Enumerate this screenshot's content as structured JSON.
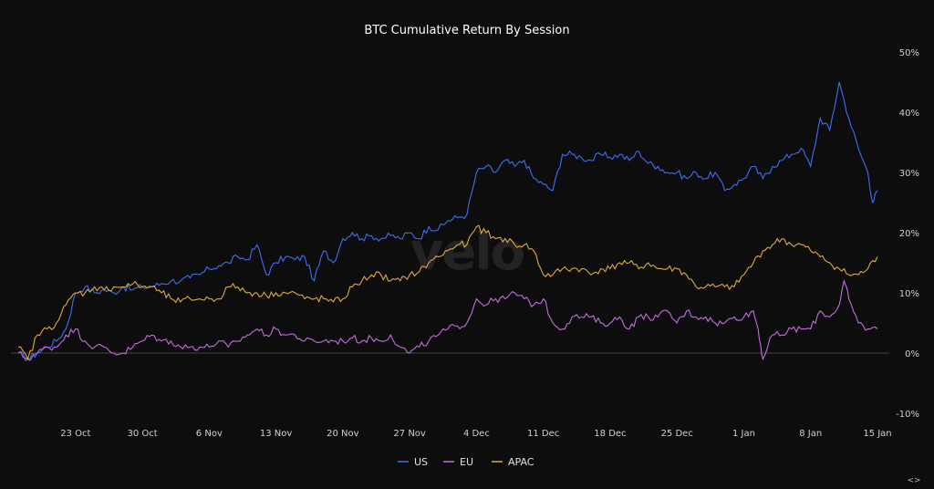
{
  "chart_data": {
    "type": "line",
    "title": "BTC Cumulative Return By Session",
    "xlabel": "",
    "ylabel": "",
    "ylim": [
      -10,
      50
    ],
    "yticks": [
      "50%",
      "40%",
      "30%",
      "20%",
      "10%",
      "0%",
      "-10%"
    ],
    "ytick_values": [
      50,
      40,
      30,
      20,
      10,
      0,
      -10
    ],
    "x_range_days": [
      0,
      90
    ],
    "xticks": [
      {
        "label": "23 Oct",
        "day": 6
      },
      {
        "label": "30 Oct",
        "day": 13
      },
      {
        "label": "6 Nov",
        "day": 20
      },
      {
        "label": "13 Nov",
        "day": 27
      },
      {
        "label": "20 Nov",
        "day": 34
      },
      {
        "label": "27 Nov",
        "day": 41
      },
      {
        "label": "4 Dec",
        "day": 48
      },
      {
        "label": "11 Dec",
        "day": 55
      },
      {
        "label": "18 Dec",
        "day": 62
      },
      {
        "label": "25 Dec",
        "day": 69
      },
      {
        "label": "1 Jan",
        "day": 76
      },
      {
        "label": "8 Jan",
        "day": 83
      },
      {
        "label": "15 Jan",
        "day": 90
      }
    ],
    "legend_position": "bottom-center",
    "grid": false,
    "series": [
      {
        "name": "US",
        "color": "#3b6ff5",
        "points": [
          [
            0,
            0
          ],
          [
            1,
            -1
          ],
          [
            2,
            0
          ],
          [
            3,
            1
          ],
          [
            4,
            2
          ],
          [
            5,
            4
          ],
          [
            6,
            10
          ],
          [
            7,
            11
          ],
          [
            8,
            10
          ],
          [
            9,
            10.5
          ],
          [
            10,
            10
          ],
          [
            11,
            11
          ],
          [
            12,
            10.5
          ],
          [
            13,
            11
          ],
          [
            14,
            11
          ],
          [
            15,
            11.5
          ],
          [
            16,
            12
          ],
          [
            17,
            12
          ],
          [
            18,
            12.5
          ],
          [
            19,
            13
          ],
          [
            20,
            14
          ],
          [
            21,
            14.5
          ],
          [
            22,
            15
          ],
          [
            23,
            16
          ],
          [
            24,
            15.5
          ],
          [
            25,
            18
          ],
          [
            26,
            13
          ],
          [
            27,
            15
          ],
          [
            28,
            16
          ],
          [
            29,
            15.5
          ],
          [
            30,
            16
          ],
          [
            31,
            12
          ],
          [
            32,
            17
          ],
          [
            33,
            15
          ],
          [
            34,
            19
          ],
          [
            35,
            20
          ],
          [
            36,
            19
          ],
          [
            37,
            19.5
          ],
          [
            38,
            19
          ],
          [
            39,
            19.5
          ],
          [
            40,
            19
          ],
          [
            41,
            20
          ],
          [
            42,
            19
          ],
          [
            43,
            21
          ],
          [
            44,
            20.5
          ],
          [
            45,
            22
          ],
          [
            46,
            22.5
          ],
          [
            47,
            23
          ],
          [
            48,
            30
          ],
          [
            49,
            31
          ],
          [
            50,
            30
          ],
          [
            51,
            32
          ],
          [
            52,
            31
          ],
          [
            53,
            32
          ],
          [
            54,
            29
          ],
          [
            55,
            28
          ],
          [
            56,
            27
          ],
          [
            57,
            33
          ],
          [
            58,
            33
          ],
          [
            59,
            32.5
          ],
          [
            60,
            32
          ],
          [
            61,
            33
          ],
          [
            62,
            32.5
          ],
          [
            63,
            33
          ],
          [
            64,
            32
          ],
          [
            65,
            33.5
          ],
          [
            66,
            31.5
          ],
          [
            67,
            31
          ],
          [
            68,
            30
          ],
          [
            69,
            30
          ],
          [
            70,
            29
          ],
          [
            71,
            30
          ],
          [
            72,
            29
          ],
          [
            73,
            30
          ],
          [
            74,
            27
          ],
          [
            75,
            28
          ],
          [
            76,
            29
          ],
          [
            77,
            31
          ],
          [
            78,
            29
          ],
          [
            79,
            31
          ],
          [
            80,
            32
          ],
          [
            81,
            33
          ],
          [
            82,
            34
          ],
          [
            83,
            31
          ],
          [
            84,
            39
          ],
          [
            85,
            37
          ],
          [
            86,
            45
          ],
          [
            87,
            39
          ],
          [
            88,
            34
          ],
          [
            89,
            30
          ],
          [
            89.5,
            25
          ],
          [
            90,
            27
          ]
        ]
      },
      {
        "name": "EU",
        "color": "#c66be0",
        "points": [
          [
            0,
            0
          ],
          [
            1,
            -1
          ],
          [
            2,
            0
          ],
          [
            3,
            1
          ],
          [
            4,
            1
          ],
          [
            5,
            3
          ],
          [
            6,
            4
          ],
          [
            7,
            2
          ],
          [
            8,
            1
          ],
          [
            9,
            1
          ],
          [
            10,
            0
          ],
          [
            11,
            0
          ],
          [
            12,
            1
          ],
          [
            13,
            2
          ],
          [
            14,
            3
          ],
          [
            15,
            2
          ],
          [
            16,
            2
          ],
          [
            17,
            1
          ],
          [
            18,
            1
          ],
          [
            19,
            1
          ],
          [
            20,
            1
          ],
          [
            21,
            2
          ],
          [
            22,
            1
          ],
          [
            23,
            2
          ],
          [
            24,
            3
          ],
          [
            25,
            4
          ],
          [
            26,
            3
          ],
          [
            27,
            4
          ],
          [
            28,
            3
          ],
          [
            29,
            3
          ],
          [
            30,
            2
          ],
          [
            31,
            2
          ],
          [
            32,
            2
          ],
          [
            33,
            2
          ],
          [
            34,
            2
          ],
          [
            35,
            2.5
          ],
          [
            36,
            2
          ],
          [
            37,
            2.5
          ],
          [
            38,
            2
          ],
          [
            39,
            3
          ],
          [
            40,
            1
          ],
          [
            41,
            0
          ],
          [
            42,
            1
          ],
          [
            43,
            2
          ],
          [
            44,
            3
          ],
          [
            45,
            4
          ],
          [
            46,
            4.5
          ],
          [
            47,
            5
          ],
          [
            48,
            9
          ],
          [
            49,
            8
          ],
          [
            50,
            9
          ],
          [
            51,
            9
          ],
          [
            52,
            10
          ],
          [
            53,
            9
          ],
          [
            54,
            8
          ],
          [
            55,
            9
          ],
          [
            56,
            5
          ],
          [
            57,
            4
          ],
          [
            58,
            6
          ],
          [
            59,
            6
          ],
          [
            60,
            6
          ],
          [
            61,
            5
          ],
          [
            62,
            5
          ],
          [
            63,
            6
          ],
          [
            64,
            4
          ],
          [
            65,
            6
          ],
          [
            66,
            6
          ],
          [
            67,
            6
          ],
          [
            68,
            7
          ],
          [
            69,
            5
          ],
          [
            70,
            7
          ],
          [
            71,
            6
          ],
          [
            72,
            6
          ],
          [
            73,
            5
          ],
          [
            74,
            5
          ],
          [
            75,
            6
          ],
          [
            76,
            6
          ],
          [
            77,
            7
          ],
          [
            77.5,
            4
          ],
          [
            78,
            -1
          ],
          [
            79,
            3
          ],
          [
            80,
            3
          ],
          [
            81,
            4
          ],
          [
            82,
            4
          ],
          [
            83,
            4
          ],
          [
            84,
            7
          ],
          [
            85,
            6
          ],
          [
            86,
            8
          ],
          [
            86.5,
            12
          ],
          [
            87,
            9
          ],
          [
            88,
            5
          ],
          [
            89,
            4
          ],
          [
            90,
            4
          ]
        ]
      },
      {
        "name": "APAC",
        "color": "#e0a93b",
        "points": [
          [
            0,
            1
          ],
          [
            1,
            -1
          ],
          [
            2,
            3
          ],
          [
            3,
            4
          ],
          [
            4,
            5
          ],
          [
            5,
            8
          ],
          [
            6,
            10
          ],
          [
            7,
            10
          ],
          [
            8,
            11
          ],
          [
            9,
            10.5
          ],
          [
            10,
            11
          ],
          [
            11,
            11
          ],
          [
            12,
            11.5
          ],
          [
            13,
            11
          ],
          [
            14,
            11
          ],
          [
            15,
            10
          ],
          [
            16,
            9
          ],
          [
            17,
            8.5
          ],
          [
            18,
            9
          ],
          [
            19,
            9
          ],
          [
            20,
            9
          ],
          [
            21,
            9
          ],
          [
            22,
            11
          ],
          [
            23,
            11
          ],
          [
            24,
            10
          ],
          [
            25,
            10
          ],
          [
            26,
            9.5
          ],
          [
            27,
            10
          ],
          [
            28,
            10
          ],
          [
            29,
            10
          ],
          [
            30,
            9
          ],
          [
            31,
            9
          ],
          [
            32,
            9
          ],
          [
            33,
            8.5
          ],
          [
            34,
            9
          ],
          [
            35,
            11
          ],
          [
            36,
            12
          ],
          [
            37,
            13
          ],
          [
            38,
            13
          ],
          [
            39,
            12
          ],
          [
            40,
            12
          ],
          [
            41,
            13
          ],
          [
            42,
            13.5
          ],
          [
            43,
            15
          ],
          [
            44,
            16
          ],
          [
            45,
            17
          ],
          [
            46,
            18
          ],
          [
            47,
            18
          ],
          [
            48,
            21
          ],
          [
            49,
            20
          ],
          [
            50,
            19
          ],
          [
            51,
            19
          ],
          [
            52,
            18
          ],
          [
            53,
            18
          ],
          [
            54,
            17
          ],
          [
            55,
            13
          ],
          [
            56,
            13
          ],
          [
            57,
            14
          ],
          [
            58,
            14
          ],
          [
            59,
            14
          ],
          [
            60,
            13
          ],
          [
            61,
            14
          ],
          [
            62,
            14
          ],
          [
            63,
            15
          ],
          [
            64,
            15
          ],
          [
            65,
            14
          ],
          [
            66,
            15
          ],
          [
            67,
            14
          ],
          [
            68,
            14
          ],
          [
            69,
            14
          ],
          [
            70,
            13
          ],
          [
            71,
            11
          ],
          [
            72,
            11
          ],
          [
            73,
            11
          ],
          [
            74,
            11
          ],
          [
            75,
            11
          ],
          [
            76,
            13
          ],
          [
            77,
            15
          ],
          [
            78,
            17
          ],
          [
            79,
            18
          ],
          [
            80,
            19
          ],
          [
            81,
            18
          ],
          [
            82,
            18
          ],
          [
            83,
            17
          ],
          [
            84,
            16
          ],
          [
            85,
            15
          ],
          [
            86,
            14
          ],
          [
            87,
            13
          ],
          [
            88,
            13
          ],
          [
            89,
            14
          ],
          [
            90,
            16
          ]
        ]
      }
    ],
    "watermark": "velo",
    "corner_label": "<>"
  }
}
